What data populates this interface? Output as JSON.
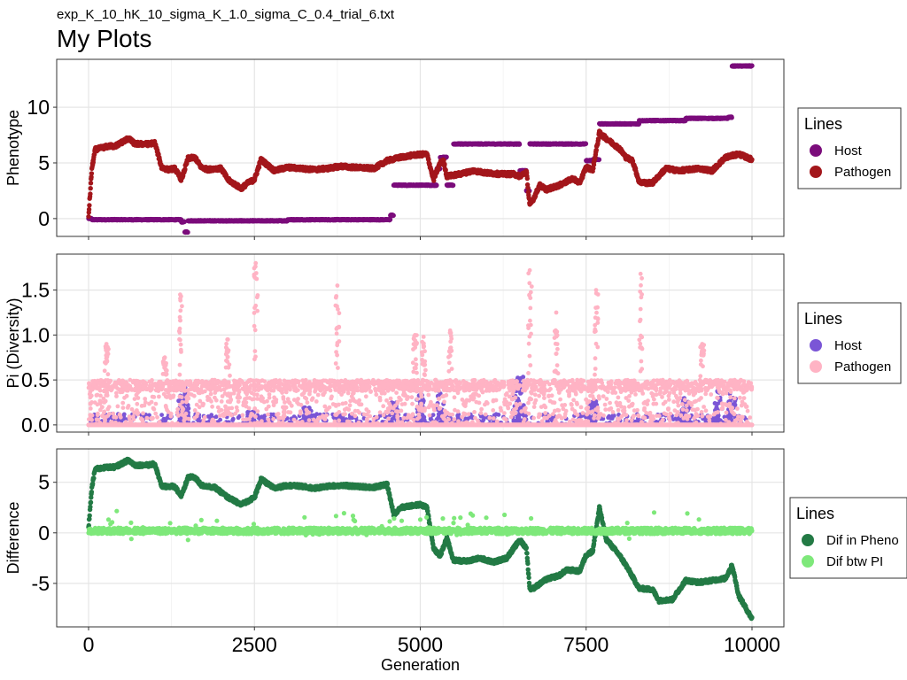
{
  "subtitle": "exp_K_10_hK_10_sigma_K_1.0_sigma_C_0.4_trial_6.txt",
  "title": "My Plots",
  "colors": {
    "host_pheno": "#7b0c7b",
    "pathogen_pheno": "#a3161b",
    "host_pi": "#7a55d6",
    "pathogen_pi": "#ffb3c4",
    "dif_pheno": "#237a45",
    "dif_pi": "#7ee87a",
    "grid": "#e5e5e5",
    "panel_border": "#333333"
  },
  "chart_data": [
    {
      "type": "scatter",
      "panel": "phenotype",
      "ylabel": "Phenotype",
      "xlim": [
        0,
        10000
      ],
      "ylim": [
        -1.6,
        14.3
      ],
      "yticks": [
        0,
        5,
        10
      ],
      "ytick_labels": [
        "0",
        "5",
        "10"
      ],
      "xticks": [
        0,
        2500,
        5000,
        7500,
        10000
      ],
      "grid": true,
      "legend": {
        "title": "Lines",
        "position": "right"
      },
      "series": [
        {
          "name": "Host",
          "color_key": "host_pheno",
          "mode": "step",
          "x": [
            0,
            50,
            1300,
            1400,
            1450,
            1500,
            2500,
            3000,
            4400,
            4550,
            4600,
            5000,
            5250,
            5300,
            5400,
            5500,
            6400,
            6500,
            6600,
            6650,
            7200,
            7300,
            7500,
            7600,
            7650,
            7700,
            8000,
            8300,
            8500,
            9000,
            9500,
            9640,
            9700,
            10000
          ],
          "y": [
            0,
            -0.1,
            -0.1,
            -0.3,
            -1.2,
            -0.2,
            -0.2,
            -0.1,
            -0.1,
            0.3,
            3.0,
            3.0,
            4.5,
            5.5,
            3.0,
            6.7,
            6.7,
            4.3,
            2.5,
            6.7,
            6.7,
            6.7,
            5.2,
            5.3,
            5.3,
            8.5,
            8.5,
            8.8,
            8.8,
            9.0,
            9.0,
            9.1,
            13.7,
            13.7
          ]
        },
        {
          "name": "Pathogen",
          "color_key": "pathogen_pheno",
          "mode": "walk",
          "x": [
            0,
            50,
            100,
            300,
            400,
            600,
            700,
            900,
            1000,
            1100,
            1200,
            1300,
            1400,
            1500,
            1600,
            1700,
            1800,
            1900,
            2000,
            2100,
            2300,
            2400,
            2500,
            2600,
            2800,
            3000,
            3200,
            3400,
            3600,
            3800,
            4000,
            4300,
            4500,
            4700,
            4900,
            5100,
            5200,
            5300,
            5350,
            5400,
            5600,
            5800,
            6000,
            6200,
            6400,
            6500,
            6600,
            6650,
            6700,
            6800,
            6900,
            7100,
            7300,
            7400,
            7500,
            7600,
            7700,
            7800,
            8000,
            8100,
            8200,
            8300,
            8400,
            8500,
            8700,
            8900,
            9200,
            9400,
            9600,
            9800,
            10000
          ],
          "y": [
            0.2,
            4.5,
            6.2,
            6.5,
            6.5,
            7.2,
            6.7,
            6.7,
            6.8,
            4.6,
            4.4,
            4.5,
            3.5,
            5.4,
            5.5,
            4.6,
            4.4,
            4.5,
            4.5,
            3.5,
            2.7,
            3.2,
            3.5,
            5.3,
            4.3,
            4.6,
            4.5,
            4.4,
            4.5,
            4.7,
            4.6,
            4.5,
            5.2,
            5.5,
            5.7,
            5.8,
            3.5,
            5.0,
            5.2,
            3.8,
            4.0,
            4.3,
            4.1,
            4.0,
            4.0,
            3.8,
            4.2,
            1.2,
            1.7,
            3.0,
            2.6,
            3.0,
            3.6,
            3.2,
            4.6,
            4.4,
            7.7,
            7.2,
            6.3,
            5.5,
            5.2,
            3.3,
            3.2,
            3.2,
            4.5,
            4.3,
            4.5,
            4.3,
            5.5,
            5.8,
            5.3
          ]
        }
      ]
    },
    {
      "type": "scatter",
      "panel": "diversity",
      "ylabel": "Pi (Diversity)",
      "xlim": [
        0,
        10000
      ],
      "ylim": [
        -0.08,
        1.9
      ],
      "yticks": [
        0,
        0.5,
        1.0,
        1.5
      ],
      "ytick_labels": [
        "0.0",
        "0.5",
        "1.0",
        "1.5"
      ],
      "xticks": [
        0,
        2500,
        5000,
        7500,
        10000
      ],
      "grid": true,
      "legend": {
        "title": "Lines",
        "position": "right"
      },
      "series": [
        {
          "name": "Host",
          "color_key": "host_pi",
          "mode": "cloud",
          "clusters": [
            [
              1400,
              0.42
            ],
            [
              1450,
              0.3
            ],
            [
              2450,
              0.15
            ],
            [
              3300,
              0.2
            ],
            [
              3800,
              0.12
            ],
            [
              4600,
              0.25
            ],
            [
              5000,
              0.4
            ],
            [
              5300,
              0.45
            ],
            [
              6450,
              0.5
            ],
            [
              6500,
              0.55
            ],
            [
              7600,
              0.3
            ],
            [
              9000,
              0.3
            ],
            [
              9500,
              0.4
            ],
            [
              9700,
              0.35
            ]
          ]
        },
        {
          "name": "Pathogen",
          "color_key": "pathogen_pi",
          "mode": "cloud",
          "peaks": [
            [
              1380,
              1.45
            ],
            [
              2520,
              1.8
            ],
            [
              3750,
              1.55
            ],
            [
              5050,
              0.98
            ],
            [
              5450,
              1.05
            ],
            [
              6650,
              1.72
            ],
            [
              7050,
              1.25
            ],
            [
              7650,
              1.5
            ],
            [
              8320,
              1.68
            ],
            [
              9250,
              0.9
            ],
            [
              4920,
              1.0
            ],
            [
              2100,
              0.95
            ],
            [
              1150,
              0.75
            ],
            [
              270,
              0.9
            ]
          ]
        }
      ]
    },
    {
      "type": "scatter",
      "panel": "difference",
      "ylabel": "Difference",
      "xlabel": "Generation",
      "xlim": [
        0,
        10000
      ],
      "ylim": [
        -9.3,
        8.3
      ],
      "yticks": [
        -5,
        0,
        5
      ],
      "ytick_labels": [
        "-5",
        "0",
        "5"
      ],
      "xticks": [
        0,
        2500,
        5000,
        7500,
        10000
      ],
      "xtick_labels": [
        "0",
        "2500",
        "5000",
        "7500",
        "10000"
      ],
      "grid": true,
      "legend": {
        "title": "Lines",
        "position": "right"
      },
      "series": [
        {
          "name": "Dif in Pheno",
          "color_key": "dif_pheno",
          "mode": "walk",
          "x": [
            0,
            50,
            100,
            300,
            400,
            600,
            700,
            900,
            1000,
            1100,
            1300,
            1400,
            1500,
            1600,
            1700,
            1900,
            2100,
            2300,
            2500,
            2600,
            2800,
            3000,
            3200,
            3400,
            3600,
            3800,
            4000,
            4300,
            4500,
            4600,
            4700,
            5000,
            5100,
            5200,
            5300,
            5400,
            5500,
            5700,
            5900,
            6100,
            6300,
            6500,
            6600,
            6650,
            6700,
            6900,
            7100,
            7200,
            7300,
            7400,
            7500,
            7600,
            7700,
            7800,
            8000,
            8100,
            8300,
            8500,
            8600,
            8800,
            9000,
            9200,
            9400,
            9600,
            9700,
            9800,
            10000
          ],
          "y": [
            0.5,
            4.5,
            6.3,
            6.5,
            6.5,
            7.2,
            6.7,
            6.7,
            6.8,
            4.6,
            4.6,
            3.6,
            5.5,
            5.5,
            4.7,
            4.5,
            3.5,
            2.8,
            3.5,
            5.3,
            4.4,
            4.7,
            4.6,
            4.4,
            4.6,
            4.7,
            4.6,
            4.5,
            4.8,
            1.8,
            2.5,
            2.8,
            2.5,
            -1.5,
            -2.3,
            -0.5,
            -2.7,
            -2.8,
            -2.5,
            -2.9,
            -2.5,
            -0.7,
            -1.5,
            -5.5,
            -5.5,
            -4.6,
            -4.2,
            -3.7,
            -3.7,
            -3.8,
            -2.2,
            -1.8,
            2.5,
            -0.6,
            -2.2,
            -3.2,
            -5.5,
            -5.6,
            -6.7,
            -6.6,
            -4.7,
            -4.9,
            -4.7,
            -4.5,
            -3.2,
            -6.2,
            -8.5
          ]
        },
        {
          "name": "Dif btw PI",
          "color_key": "dif_pi",
          "mode": "noise",
          "center": 0.2
        }
      ]
    }
  ],
  "legends": [
    {
      "title": "Lines",
      "items": [
        "Host",
        "Pathogen"
      ]
    },
    {
      "title": "Lines",
      "items": [
        "Host",
        "Pathogen"
      ]
    },
    {
      "title": "Lines",
      "items": [
        "Dif in Pheno",
        "Dif btw PI"
      ]
    }
  ]
}
